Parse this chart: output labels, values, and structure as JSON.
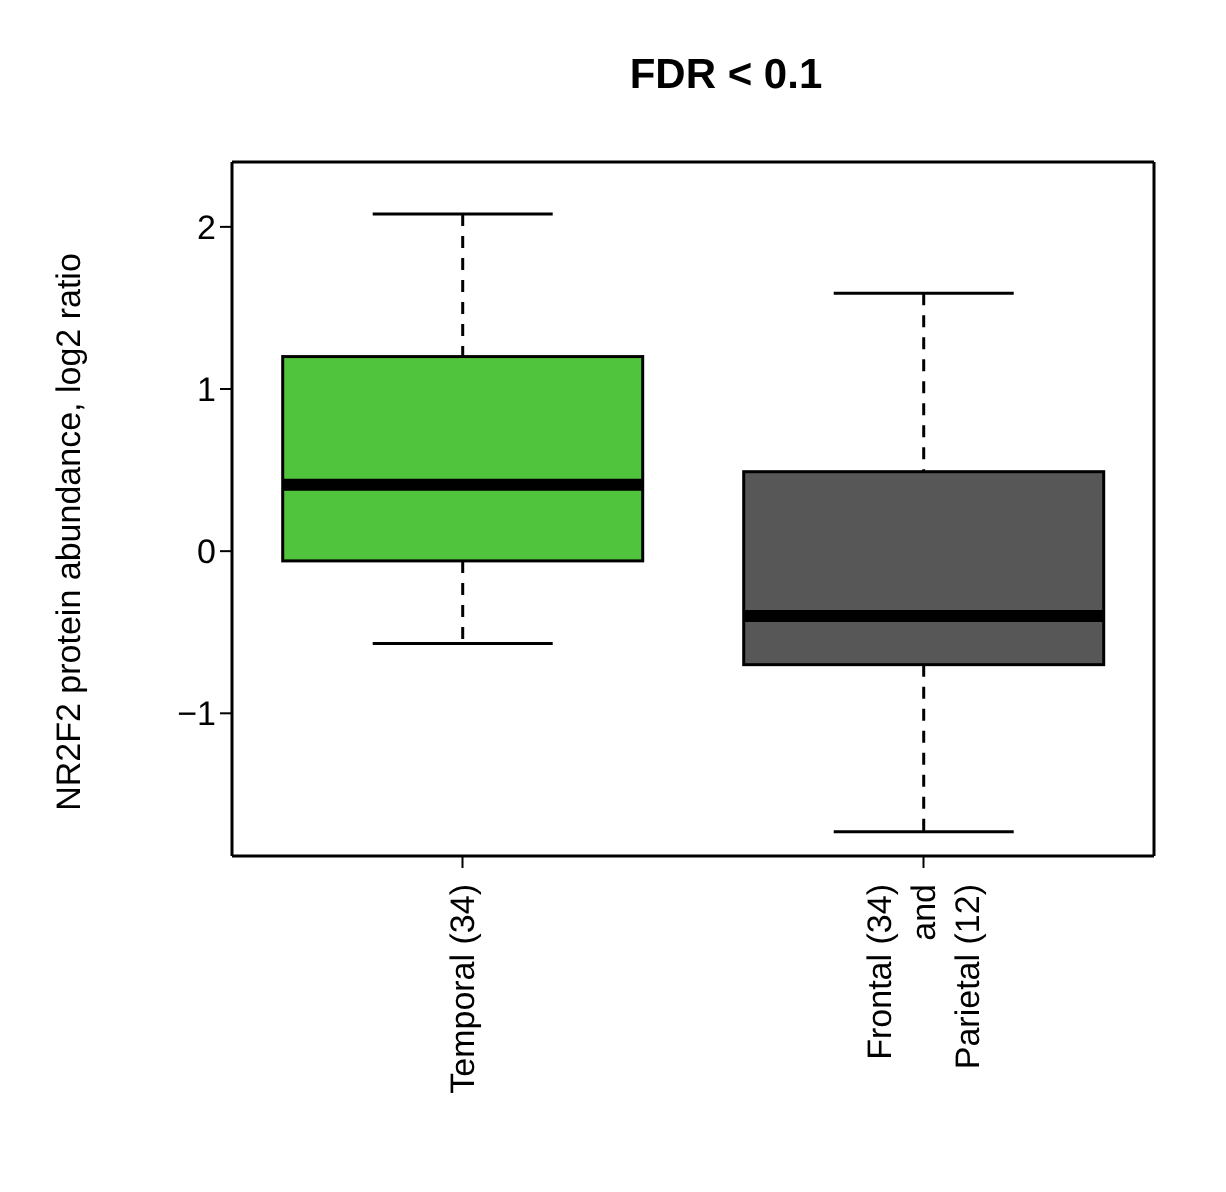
{
  "chart_data": {
    "type": "box",
    "title": "FDR < 0.1",
    "ylabel": "NR2F2 protein abundance, log2 ratio",
    "categories": [
      "Temporal (34)",
      "Frontal (34)\nand\nParietal (12)"
    ],
    "colors": [
      "#50c43c",
      "#575757"
    ],
    "boxes": [
      {
        "low": -0.57,
        "q1": -0.06,
        "median": 0.41,
        "q3": 1.2,
        "high": 2.08
      },
      {
        "low": -1.73,
        "q1": -0.7,
        "median": -0.4,
        "q3": 0.49,
        "high": 1.59
      }
    ],
    "ylim": [
      -1.88,
      2.4
    ],
    "yticks": [
      {
        "value": -1,
        "label": "−1"
      },
      0,
      1,
      2
    ]
  }
}
